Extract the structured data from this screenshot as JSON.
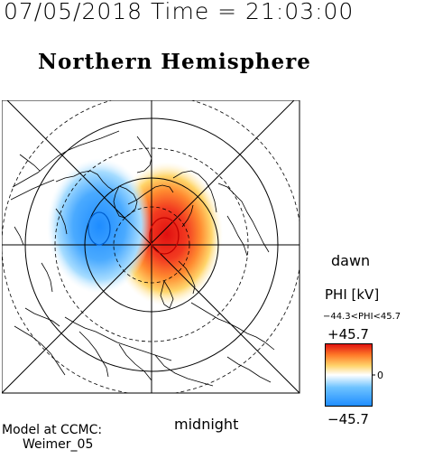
{
  "header": {
    "timestamp": "07/05/2018 Time = 21:03:00",
    "title": "Northern Hemisphere"
  },
  "map": {
    "projection": "polar-stereographic",
    "hemisphere": "north",
    "field": "electric-potential",
    "max_contour": {
      "color": "#e02020"
    },
    "min_contour": {
      "color": "#1e90ff"
    }
  },
  "labels": {
    "dawn": "dawn",
    "midnight": "midnight"
  },
  "colorbar": {
    "title": "PHI [kV]",
    "range_text": "−44.3<PHI<45.7",
    "max_label": "+45.7",
    "min_label": "−45.7",
    "zero_label": "0",
    "max": 45.7,
    "min": -45.7,
    "colors": [
      "#1e8cff",
      "#6ec3ff",
      "#ffffff",
      "#ffd36a",
      "#ff7a28",
      "#e01010"
    ]
  },
  "footer": {
    "line1": "Model at CCMC:",
    "line2": "Weimer_05"
  }
}
